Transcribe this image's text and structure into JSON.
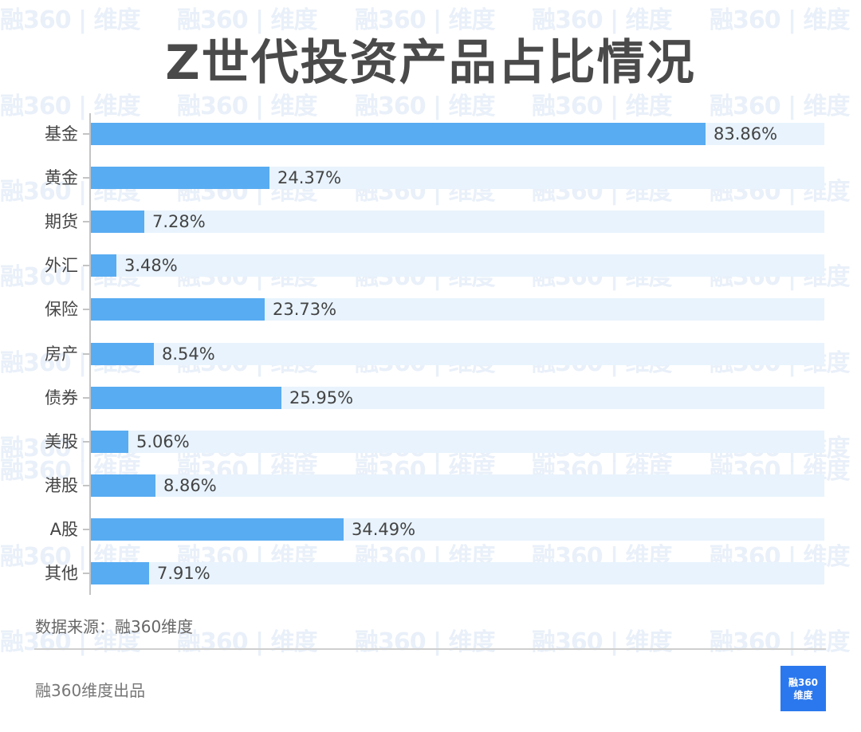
{
  "title": "Z世代投资产品占比情况",
  "watermark_text": "融360 | 维度",
  "chart_data": {
    "type": "bar",
    "orientation": "horizontal",
    "title": "Z世代投资产品占比情况",
    "xlabel": "",
    "ylabel": "",
    "categories": [
      "基金",
      "黄金",
      "期货",
      "外汇",
      "保险",
      "房产",
      "债券",
      "美股",
      "港股",
      "A股",
      "其他"
    ],
    "values": [
      83.86,
      24.37,
      7.28,
      3.48,
      23.73,
      8.54,
      25.95,
      5.06,
      8.86,
      34.49,
      7.91
    ],
    "value_labels": [
      "83.86%",
      "24.37%",
      "7.28%",
      "3.48%",
      "23.73%",
      "8.54%",
      "25.95%",
      "5.06%",
      "8.86%",
      "34.49%",
      "7.91%"
    ],
    "unit": "%",
    "xlim": [
      0,
      100
    ],
    "grid": false,
    "legend": "none",
    "bar_color": "#58acf2",
    "track_color": "#e8f3fd"
  },
  "footer": {
    "source": "数据来源：融360维度",
    "credit": "融360维度出品",
    "logo_line1": "融360",
    "logo_line2": "维度"
  },
  "colors": {
    "bar": "#58acf2",
    "track": "#e8f3fd",
    "logo_bg": "#2b78ee",
    "title": "#4a4a4a"
  }
}
